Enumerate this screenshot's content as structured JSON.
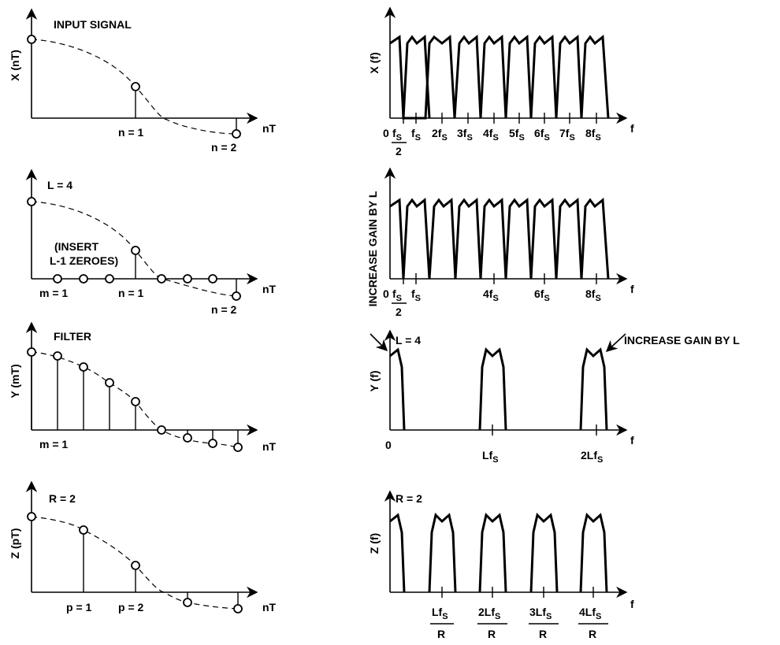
{
  "panel1": {
    "title": "INPUT SIGNAL",
    "y_axis": "X (nT)",
    "x_axis": "nT",
    "label_n1": "n = 1",
    "label_n2": "n = 2"
  },
  "panel2": {
    "l_label": "L = 4",
    "insert_line1": "(INSERT",
    "insert_line2": "L-1 ZEROES)",
    "label_m1": "m = 1",
    "label_n1": "n = 1",
    "label_n2": "n = 2",
    "x_axis": "nT"
  },
  "panel3": {
    "title": "FILTER",
    "y_axis": "Y (mT)",
    "x_axis": "nT",
    "label_m1": "m = 1"
  },
  "panel4": {
    "r_label": "R = 2",
    "y_axis": "Z (pT)",
    "x_axis": "nT",
    "label_p1": "p = 1",
    "label_p2": "p = 2"
  },
  "spectrum1": {
    "y_axis": "X (f)",
    "x_axis": "f",
    "zero": "0",
    "half_num": "f",
    "half_sub": "S",
    "half_den": "2",
    "ticks": [
      {
        "pre": "",
        "sub": "S"
      },
      {
        "pre": "2f",
        "sub": "S"
      },
      {
        "pre": "3f",
        "sub": "S"
      },
      {
        "pre": "4f",
        "sub": "S"
      },
      {
        "pre": "5f",
        "sub": "S"
      },
      {
        "pre": "6f",
        "sub": "S"
      },
      {
        "pre": "7f",
        "sub": "S"
      },
      {
        "pre": "8f",
        "sub": "S"
      }
    ]
  },
  "spectrum2": {
    "side_label": "INCREASE GAIN BY L",
    "x_axis": "f",
    "zero": "0",
    "half_num": "f",
    "half_sub": "S",
    "half_den": "2",
    "t1_pre": "f",
    "t1_sub": "S",
    "t4_pre": "4f",
    "t4_sub": "S",
    "t6_pre": "6f",
    "t6_sub": "S",
    "t8_pre": "8f",
    "t8_sub": "S"
  },
  "spectrum3": {
    "y_axis": "Y (f)",
    "x_axis": "f",
    "l_label": "L = 4",
    "gain_label": "INCREASE GAIN BY L",
    "zero": "0",
    "lfs_pre": "Lf",
    "lfs_sub": "S",
    "l2fs_pre": "2Lf",
    "l2fs_sub": "S"
  },
  "spectrum4": {
    "y_axis": "Z (f)",
    "x_axis": "f",
    "r_label": "R = 2",
    "den": "R",
    "ticks": [
      {
        "pre": "Lf",
        "sub": "S"
      },
      {
        "pre": "2Lf",
        "sub": "S"
      },
      {
        "pre": "3Lf",
        "sub": "S"
      },
      {
        "pre": "4Lf",
        "sub": "S"
      }
    ]
  }
}
